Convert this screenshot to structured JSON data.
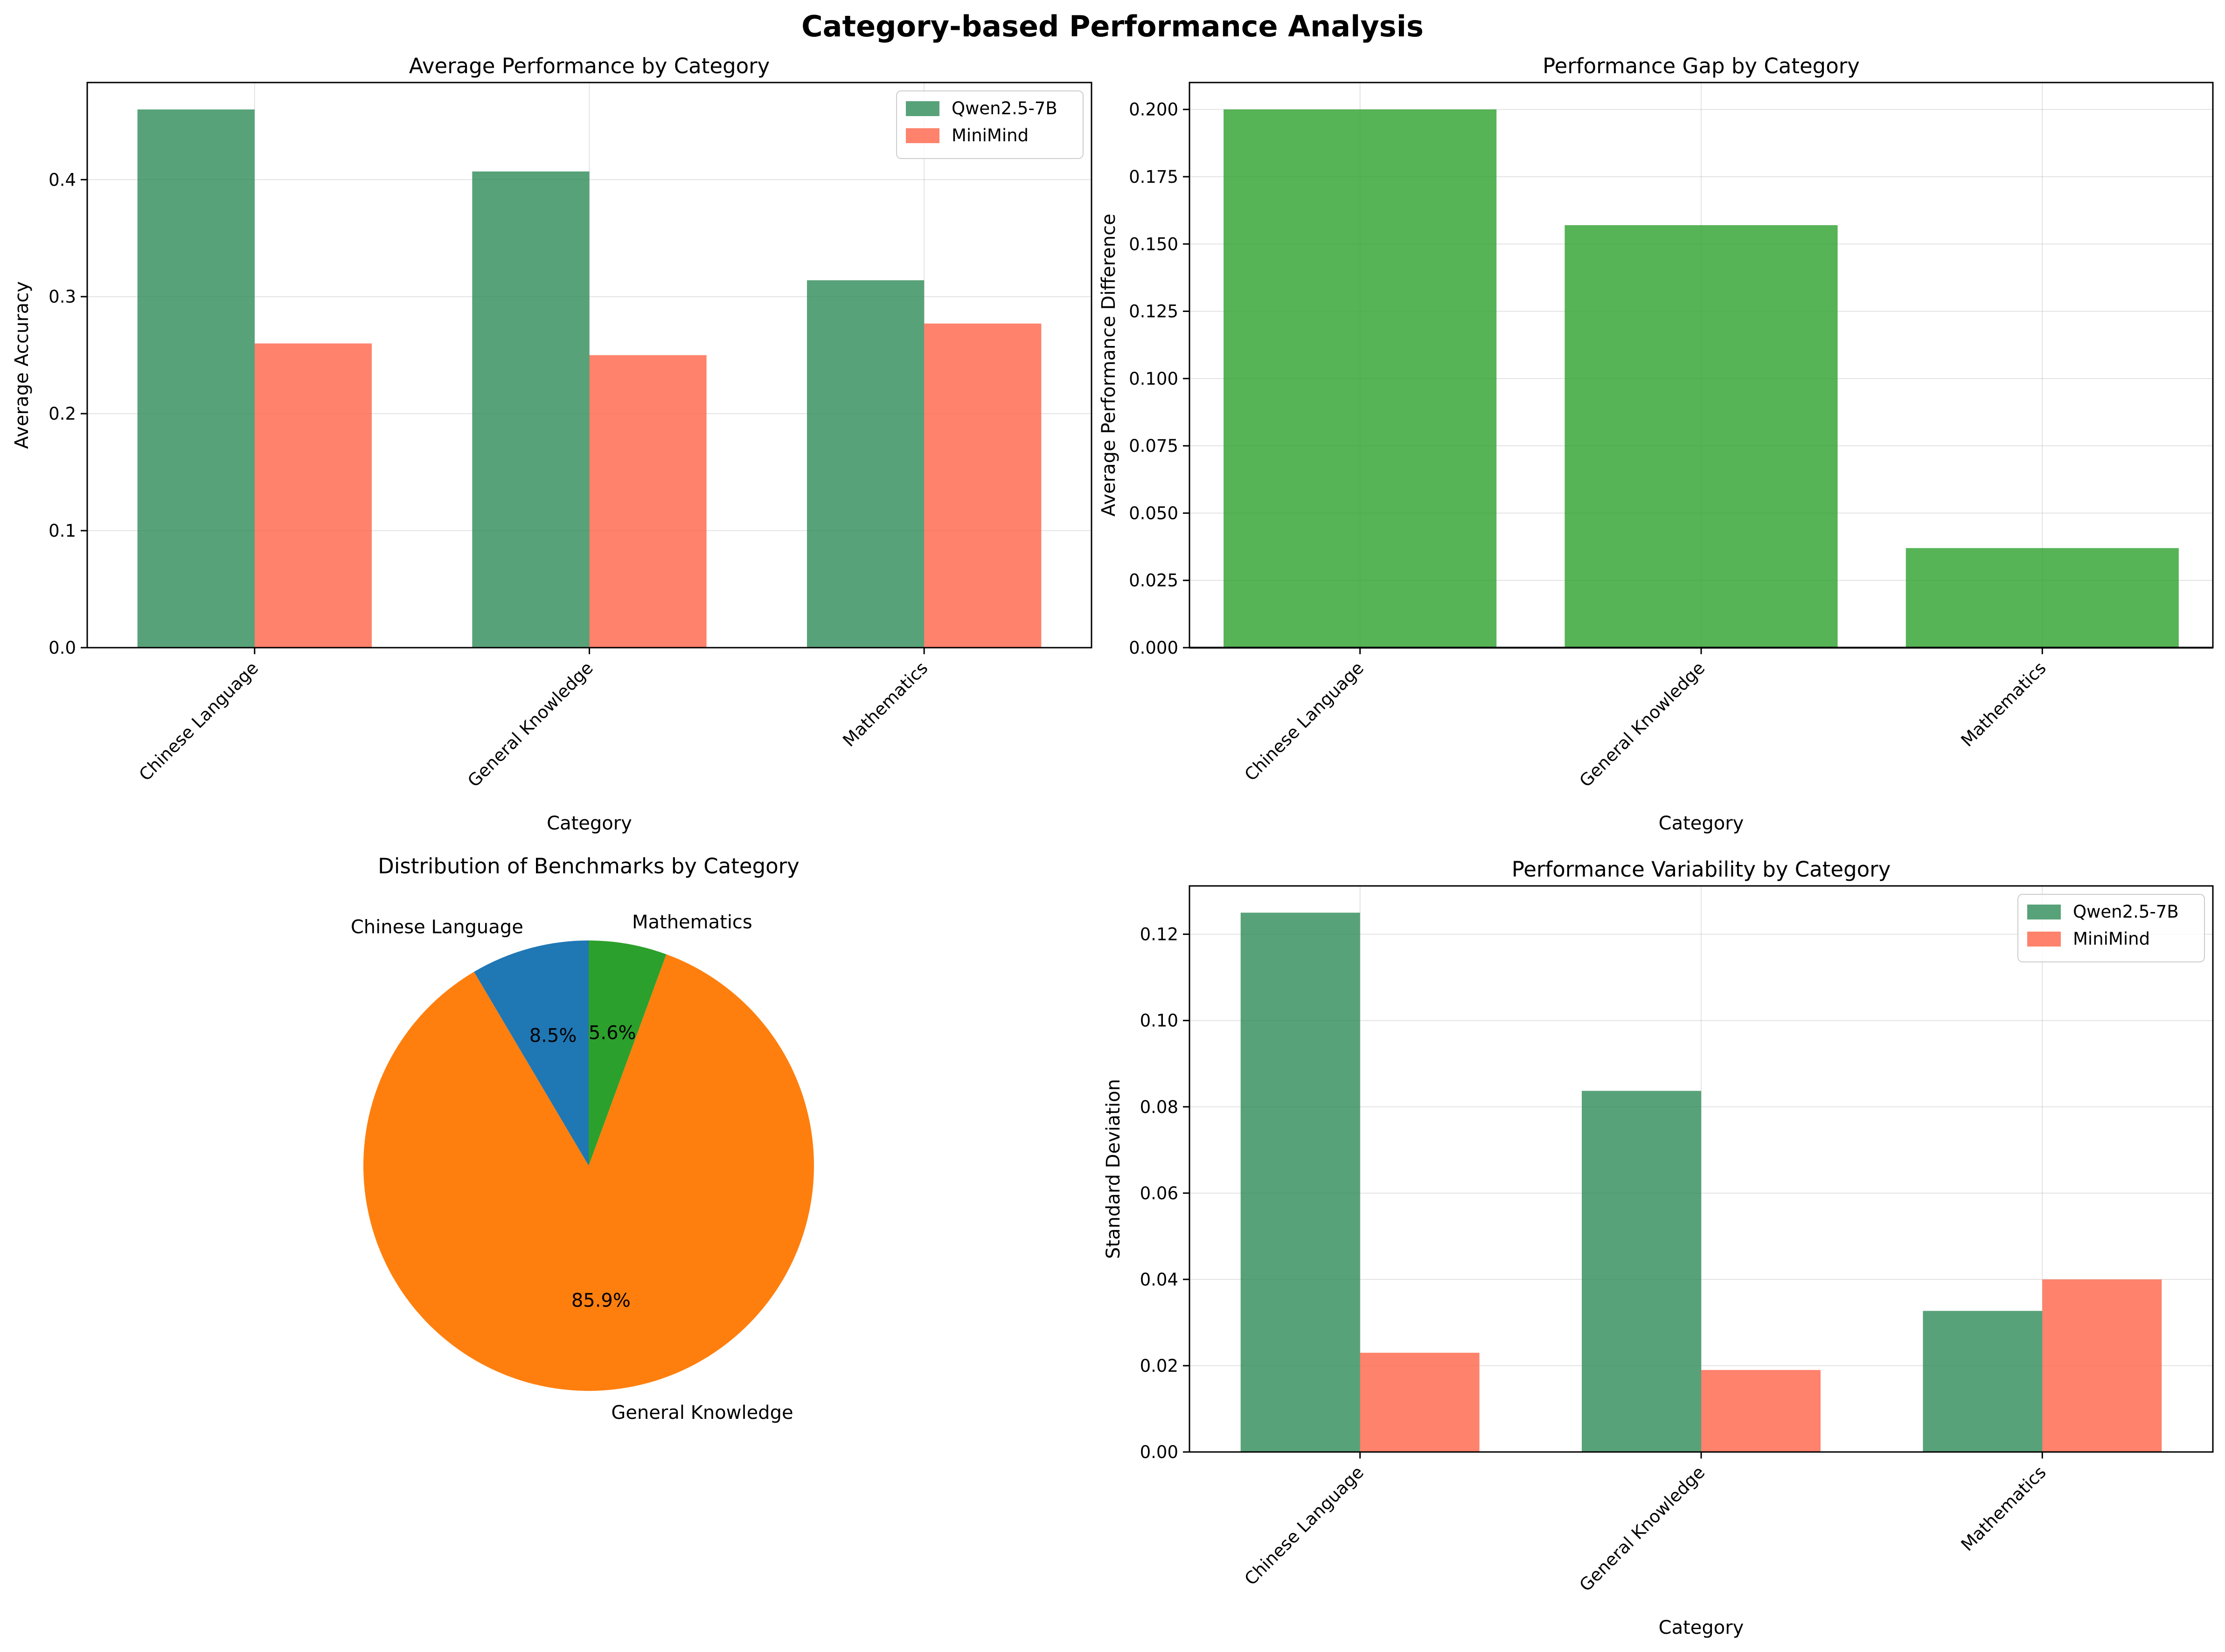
{
  "suptitle": "Category-based Performance Analysis",
  "chart_data": [
    {
      "type": "bar",
      "title": "Average Performance by Category",
      "xlabel": "Category",
      "ylabel": "Average Accuracy",
      "categories": [
        "Chinese Language",
        "General Knowledge",
        "Mathematics"
      ],
      "series": [
        {
          "name": "Qwen2.5-7B",
          "values": [
            0.46,
            0.407,
            0.314
          ],
          "color": "#2E8B57"
        },
        {
          "name": "MiniMind",
          "values": [
            0.26,
            0.25,
            0.277
          ],
          "color": "#FF6347"
        }
      ],
      "ylim": [
        0,
        0.483
      ],
      "yticks": [
        "0.0",
        "0.1",
        "0.2",
        "0.3",
        "0.4"
      ],
      "grid": true,
      "legend": "top-right"
    },
    {
      "type": "bar",
      "title": "Performance Gap by Category",
      "xlabel": "Category",
      "ylabel": "Average Performance Difference",
      "categories": [
        "Chinese Language",
        "General Knowledge",
        "Mathematics"
      ],
      "values": [
        0.2,
        0.157,
        0.037
      ],
      "color": "#2CA02C",
      "ylim": [
        0,
        0.21
      ],
      "yticks": [
        "0.000",
        "0.025",
        "0.050",
        "0.075",
        "0.100",
        "0.125",
        "0.150",
        "0.175",
        "0.200"
      ],
      "grid": true
    },
    {
      "type": "pie",
      "title": "Distribution of Benchmarks by Category",
      "labels": [
        "Chinese Language",
        "General Knowledge",
        "Mathematics"
      ],
      "values": [
        8.5,
        85.9,
        5.6
      ],
      "pct_labels": [
        "8.5%",
        "85.9%",
        "5.6%"
      ],
      "colors": [
        "#1F77B4",
        "#FF7F0E",
        "#2CA02C"
      ]
    },
    {
      "type": "bar",
      "title": "Performance Variability by Category",
      "xlabel": "Category",
      "ylabel": "Standard Deviation",
      "categories": [
        "Chinese Language",
        "General Knowledge",
        "Mathematics"
      ],
      "series": [
        {
          "name": "Qwen2.5-7B",
          "values": [
            0.125,
            0.0837,
            0.0327
          ],
          "color": "#2E8B57"
        },
        {
          "name": "MiniMind",
          "values": [
            0.023,
            0.019,
            0.04
          ],
          "color": "#FF6347"
        }
      ],
      "ylim": [
        0,
        0.1312
      ],
      "yticks": [
        "0.00",
        "0.02",
        "0.04",
        "0.06",
        "0.08",
        "0.10",
        "0.12"
      ],
      "grid": true,
      "legend": "top-right"
    }
  ]
}
